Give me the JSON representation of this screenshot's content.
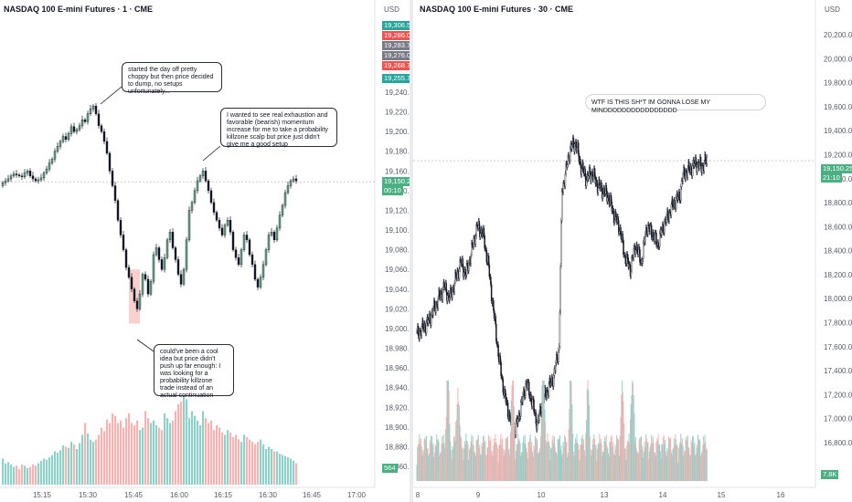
{
  "left": {
    "title": "NASDAQ 100 E-mini Futures · 1 · CME",
    "currency": "USD",
    "y_ticks": [
      "19,240.00",
      "19,220.00",
      "19,200.00",
      "19,180.00",
      "19,160.00",
      "19,140.00",
      "19,120.00",
      "19,100.00",
      "19,080.00",
      "19,060.00",
      "19,040.00",
      "19,020.00",
      "19,000.00",
      "18,980.00",
      "18,960.00",
      "18,940.00",
      "18,920.00",
      "18,900.00",
      "18,880.00",
      "18,860.00"
    ],
    "x_ticks": [
      "15:15",
      "15:30",
      "15:45",
      "16:00",
      "16:15",
      "16:30",
      "16:45",
      "17:00"
    ],
    "price_boxes": [
      {
        "text": "19,306.50",
        "color": "#26a69a"
      },
      {
        "text": "19,286.00",
        "color": "#ef5350"
      },
      {
        "text": "19,283.75",
        "color": "#787b86"
      },
      {
        "text": "19,276.00",
        "color": "#787b86"
      },
      {
        "text": "19,268.75",
        "color": "#ef5350"
      },
      {
        "text": "19,255.75",
        "color": "#26a69a"
      }
    ],
    "last_price": "19,150.25",
    "countdown": "00:10",
    "volume_label": "564",
    "notes": [
      "started the day off pretty choppy but then price decided to dump, no setups unfortunately...",
      "I wanted to see real exhaustion and favorable (bearish) momentum increase for me to take a probability killzone scalp but price just didn't give me a good setup",
      "could've been a cool idea but price didn't push up far enough: I was looking for a probability killzone trade instead of an actual continuation"
    ]
  },
  "right": {
    "title": "NASDAQ 100 E-mini Futures · 30 · CME",
    "currency": "USD",
    "y_ticks": [
      "20,200.00",
      "20,000.00",
      "19,800.00",
      "19,600.00",
      "19,400.00",
      "19,200.00",
      "19,000.00",
      "18,800.00",
      "18,600.00",
      "18,400.00",
      "18,200.00",
      "18,000.00",
      "17,800.00",
      "17,600.00",
      "17,400.00",
      "17,200.00",
      "17,000.00",
      "16,800.00"
    ],
    "x_ticks": [
      "8",
      "9",
      "10",
      "13",
      "14",
      "15",
      "16"
    ],
    "last_price": "19,150.25",
    "countdown": "21:10",
    "volume_label": "7.8K",
    "note": "WTF IS THIS SH*T IM GONNA LOSE MY MINDDDDDDDDDDDDDDDD"
  },
  "colors": {
    "up": "#26a69a",
    "down": "#ef5350",
    "candle_body": "#131722",
    "vol_up": "#8fd1c9",
    "vol_down": "#f6b3b1",
    "highlight": "#f8c4c3",
    "green_body": "#6aa88a"
  },
  "chart_data": [
    {
      "type": "candlestick",
      "title": "NASDAQ 100 E-mini Futures · 1 · CME",
      "ylim": [
        18850,
        19250
      ],
      "x_range": [
        "15:06",
        "17:00"
      ],
      "closes": [
        19148,
        19150,
        19152,
        19155,
        19157,
        19156,
        19155,
        19154,
        19158,
        19160,
        19155,
        19152,
        19150,
        19151,
        19153,
        19158,
        19162,
        19168,
        19172,
        19180,
        19185,
        19190,
        19195,
        19192,
        19198,
        19205,
        19200,
        19202,
        19206,
        19212,
        19210,
        19218,
        19223,
        19226,
        19218,
        19206,
        19200,
        19190,
        19178,
        19160,
        19145,
        19130,
        19110,
        19095,
        19080,
        19062,
        19052,
        19040,
        19028,
        19020,
        19035,
        19055,
        19050,
        19035,
        19048,
        19075,
        19082,
        19070,
        19060,
        19072,
        19090,
        19098,
        19082,
        19070,
        19055,
        19045,
        19060,
        19090,
        19120,
        19128,
        19140,
        19150,
        19155,
        19160,
        19150,
        19140,
        19128,
        19118,
        19110,
        19102,
        19095,
        19105,
        19110,
        19098,
        19080,
        19072,
        19065,
        19080,
        19095,
        19090,
        19075,
        19065,
        19050,
        19042,
        19052,
        19065,
        19080,
        19095,
        19098,
        19090,
        19102,
        19115,
        19125,
        19138,
        19145,
        19150,
        19152,
        19150
      ],
      "volumes": [
        220,
        180,
        190,
        170,
        150,
        160,
        130,
        170,
        160,
        140,
        150,
        170,
        160,
        180,
        200,
        220,
        210,
        230,
        250,
        280,
        270,
        290,
        330,
        320,
        310,
        360,
        340,
        300,
        350,
        420,
        520,
        430,
        380,
        360,
        380,
        420,
        480,
        450,
        550,
        520,
        600,
        580,
        520,
        540,
        480,
        560,
        600,
        520,
        500,
        540,
        460,
        480,
        620,
        560,
        520,
        540,
        500,
        480,
        460,
        600,
        560,
        520,
        540,
        620,
        680,
        700,
        1000,
        720,
        560,
        620,
        580,
        540,
        500,
        620,
        560,
        520,
        540,
        460,
        500,
        480,
        440,
        420,
        460,
        440,
        400,
        420,
        380,
        360,
        420,
        400,
        380,
        360,
        340,
        360,
        380,
        340,
        300,
        320,
        300,
        280,
        280,
        260,
        250,
        240,
        230,
        220,
        200,
        180
      ]
    },
    {
      "type": "candlestick",
      "title": "NASDAQ 100 E-mini Futures · 30 · CME",
      "ylim": [
        16800,
        20300
      ],
      "x_categories": [
        "8",
        "9",
        "10",
        "13",
        "14",
        "15",
        "16"
      ],
      "key_points": [
        [
          0,
          17700
        ],
        [
          4,
          17800
        ],
        [
          6,
          17900
        ],
        [
          8,
          18000
        ],
        [
          10,
          18100
        ],
        [
          12,
          18000
        ],
        [
          14,
          18150
        ],
        [
          16,
          18300
        ],
        [
          18,
          18200
        ],
        [
          20,
          18400
        ],
        [
          22,
          18600
        ],
        [
          24,
          18550
        ],
        [
          26,
          18300
        ],
        [
          28,
          17900
        ],
        [
          30,
          17500
        ],
        [
          32,
          17200
        ],
        [
          34,
          17000
        ],
        [
          36,
          16900
        ],
        [
          38,
          17100
        ],
        [
          40,
          17300
        ],
        [
          42,
          17150
        ],
        [
          44,
          16950
        ],
        [
          46,
          17150
        ],
        [
          48,
          17250
        ],
        [
          50,
          17350
        ],
        [
          52,
          17600
        ],
        [
          53,
          18900
        ],
        [
          54,
          19000
        ],
        [
          56,
          19250
        ],
        [
          58,
          19300
        ],
        [
          60,
          19100
        ],
        [
          62,
          19000
        ],
        [
          64,
          19050
        ],
        [
          66,
          18950
        ],
        [
          68,
          18900
        ],
        [
          70,
          18850
        ],
        [
          72,
          18700
        ],
        [
          74,
          18600
        ],
        [
          76,
          18350
        ],
        [
          78,
          18250
        ],
        [
          80,
          18450
        ],
        [
          82,
          18300
        ],
        [
          84,
          18600
        ],
        [
          86,
          18550
        ],
        [
          88,
          18450
        ],
        [
          90,
          18600
        ],
        [
          92,
          18700
        ],
        [
          94,
          18800
        ],
        [
          96,
          18850
        ],
        [
          97,
          19000
        ],
        [
          98,
          19050
        ],
        [
          100,
          19080
        ],
        [
          102,
          19130
        ],
        [
          104,
          19100
        ],
        [
          106,
          19150
        ]
      ]
    }
  ]
}
